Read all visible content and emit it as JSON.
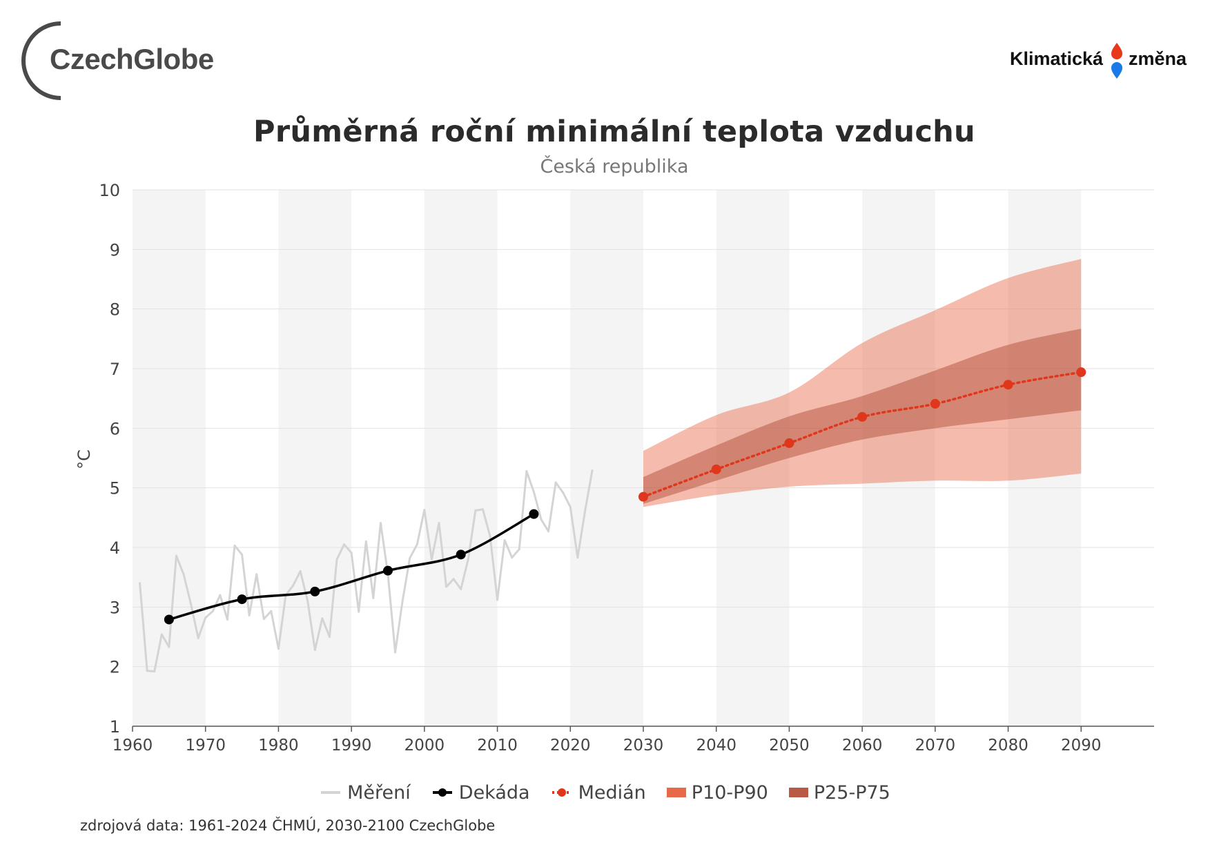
{
  "branding": {
    "left_logo": "CzechGlobe",
    "right_logo_part1": "Klimatická",
    "right_logo_part2": "změna",
    "drop_colors": [
      "#e8371a",
      "#1a7ae8"
    ]
  },
  "chart_data": {
    "type": "line",
    "title": "Průměrná roční minimální teplota vzduchu",
    "subtitle": "Česká republika",
    "ylabel": "°C",
    "xlabel": "",
    "ylim": [
      1,
      10
    ],
    "xlim": [
      1960,
      2100
    ],
    "yticks": [
      1,
      2,
      3,
      4,
      5,
      6,
      7,
      8,
      9,
      10
    ],
    "xticks": [
      1960,
      1970,
      1980,
      1990,
      2000,
      2010,
      2020,
      2030,
      2040,
      2050,
      2060,
      2070,
      2080,
      2090
    ],
    "background_bands": [
      [
        1960,
        1970
      ],
      [
        1980,
        1990
      ],
      [
        2000,
        2010
      ],
      [
        2020,
        2030
      ],
      [
        2040,
        2050
      ],
      [
        2060,
        2070
      ],
      [
        2080,
        2090
      ]
    ],
    "series": [
      {
        "name": "Měření",
        "color": "#d4d4d4",
        "x": [
          1961,
          1962,
          1963,
          1964,
          1965,
          1966,
          1967,
          1968,
          1969,
          1970,
          1971,
          1972,
          1973,
          1974,
          1975,
          1976,
          1977,
          1978,
          1979,
          1980,
          1981,
          1982,
          1983,
          1984,
          1985,
          1986,
          1987,
          1988,
          1989,
          1990,
          1991,
          1992,
          1993,
          1994,
          1995,
          1996,
          1997,
          1998,
          1999,
          2000,
          2001,
          2002,
          2003,
          2004,
          2005,
          2006,
          2007,
          2008,
          2009,
          2010,
          2011,
          2012,
          2013,
          2014,
          2015,
          2016,
          2017,
          2018,
          2019,
          2020,
          2021,
          2022,
          2023
        ],
        "values": [
          3.4,
          1.93,
          1.92,
          2.54,
          2.33,
          3.86,
          3.55,
          3.05,
          2.48,
          2.82,
          2.93,
          3.2,
          2.79,
          4.03,
          3.88,
          2.86,
          3.55,
          2.8,
          2.93,
          2.3,
          3.2,
          3.36,
          3.6,
          3.1,
          2.28,
          2.81,
          2.5,
          3.8,
          4.05,
          3.91,
          2.92,
          4.1,
          3.15,
          4.41,
          3.55,
          2.24,
          3.1,
          3.82,
          4.05,
          4.63,
          3.8,
          4.41,
          3.34,
          3.47,
          3.3,
          3.8,
          4.62,
          4.64,
          4.19,
          3.12,
          4.12,
          3.83,
          3.97,
          5.28,
          4.93,
          4.47,
          4.27,
          5.09,
          4.92,
          4.68,
          3.83,
          4.6,
          5.29
        ]
      },
      {
        "name": "Dekáda",
        "color": "#000000",
        "x": [
          1965,
          1975,
          1985,
          1995,
          2005,
          2015
        ],
        "values": [
          2.79,
          3.13,
          3.26,
          3.61,
          3.88,
          4.56
        ]
      },
      {
        "name": "Medián",
        "color": "#e0361c",
        "x": [
          2030,
          2040,
          2050,
          2060,
          2070,
          2080,
          2090
        ],
        "values": [
          4.85,
          5.31,
          5.75,
          6.19,
          6.41,
          6.73,
          6.94
        ]
      },
      {
        "name": "P10-P90",
        "color": "#e8684a",
        "x": [
          2030,
          2040,
          2050,
          2060,
          2070,
          2080,
          2090
        ],
        "lower": [
          4.68,
          4.88,
          5.02,
          5.07,
          5.12,
          5.12,
          5.24
        ],
        "upper": [
          5.62,
          6.22,
          6.6,
          7.43,
          7.98,
          8.52,
          8.84
        ]
      },
      {
        "name": "P25-P75",
        "color": "#b85a46",
        "x": [
          2030,
          2040,
          2050,
          2060,
          2070,
          2080,
          2090
        ],
        "lower": [
          4.73,
          5.12,
          5.5,
          5.81,
          6.0,
          6.15,
          6.3
        ],
        "upper": [
          5.18,
          5.71,
          6.2,
          6.54,
          6.97,
          7.4,
          7.67
        ]
      }
    ]
  },
  "legend": [
    {
      "label": "Měření"
    },
    {
      "label": "Dekáda"
    },
    {
      "label": "Medián"
    },
    {
      "label": "P10-P90"
    },
    {
      "label": "P25-P75"
    }
  ],
  "source": "zdrojová data: 1961-2024 ČHMÚ, 2030-2100 CzechGlobe"
}
